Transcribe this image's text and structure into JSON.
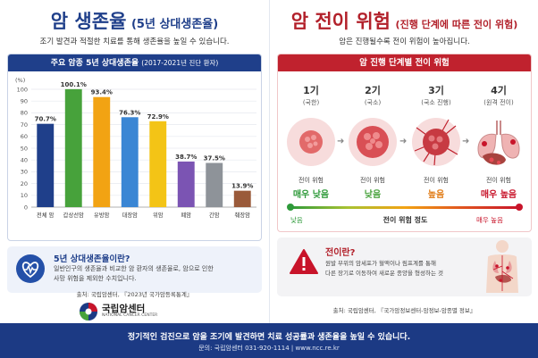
{
  "left": {
    "title_main": "암 생존율",
    "title_paren": "(5년 상대생존율)",
    "subtitle": "조기 발견과 적절한 치료를 통해 생존율을 높일 수 있습니다.",
    "chart_header": "주요 암종 5년 상대생존율",
    "chart_period": "(2017-2021년 진단 환자)",
    "info_title": "5년 상대생존율이란?",
    "info_line1": "일반인구의 생존율과 비교한 암 환자의 생존율로, 암으로 인한",
    "info_line2": "사망 위험을 제외한 수치입니다.",
    "source": "출처: 국립암센터, 『2023년 국가암등록통계』",
    "logo_name": "국립암센터",
    "logo_eng": "NATIONAL CANCER CENTER"
  },
  "chart_data": {
    "type": "bar",
    "title": "주요 암종 5년 상대생존율",
    "ylabel": "(%)",
    "ylim": [
      0,
      100
    ],
    "yticks": [
      0,
      10,
      20,
      30,
      40,
      50,
      60,
      70,
      80,
      90,
      100
    ],
    "categories": [
      "전체 암",
      "갑상선암",
      "유방암",
      "대장암",
      "위암",
      "폐암",
      "간암",
      "췌장암"
    ],
    "values": [
      70.7,
      100.1,
      93.4,
      76.3,
      72.9,
      38.7,
      37.5,
      13.9
    ],
    "value_labels": [
      "70.7%",
      "100.1%",
      "93.4%",
      "76.3%",
      "72.9%",
      "38.7%",
      "37.5%",
      "13.9%"
    ],
    "colors": [
      "#1f3f8a",
      "#47a23b",
      "#f2a313",
      "#3a86d4",
      "#f3c416",
      "#7b54b3",
      "#8e9399",
      "#9a5a3a"
    ]
  },
  "right": {
    "title_main": "암 전이 위험",
    "title_paren": "(진행 단계에 따른 전이 위험)",
    "subtitle": "암은 진행될수록 전이 위험이 높아집니다.",
    "risk_header": "암 진행 단계별 전이 위험",
    "stages": [
      {
        "num": "1기",
        "desc": "(국한)",
        "risk_label": "전이 위험",
        "risk_level": "매우 낮음",
        "color": "#2e9a3a"
      },
      {
        "num": "2기",
        "desc": "(국소)",
        "risk_label": "전이 위험",
        "risk_level": "낮음",
        "color": "#47a23b"
      },
      {
        "num": "3기",
        "desc": "(국소 진행)",
        "risk_label": "전이 위험",
        "risk_level": "높음",
        "color": "#e07a14"
      },
      {
        "num": "4기",
        "desc": "(원격 전이)",
        "risk_label": "전이 위험",
        "risk_level": "매우 높음",
        "color": "#c8142a"
      }
    ],
    "scale_low": "낮음",
    "scale_mid": "전이 위험 정도",
    "scale_high": "매우 높음",
    "meta_title": "전이란?",
    "meta_line1": "원발 부위의 암세포가 혈액이나 림프계를 통해",
    "meta_line2": "다른 장기로 이동하여 새로운 종양을 형성하는 것",
    "source": "출처: 국립암센터, 『국가암정보센터-암정보-암종별 정보』"
  },
  "footer": {
    "main": "정기적인 검진으로 암을 조기에 발견하면 치료 성공률과 생존율을 높일 수 있습니다.",
    "contact": "문의: 국립암센터  031-920-1114   |   www.ncc.re.kr"
  }
}
